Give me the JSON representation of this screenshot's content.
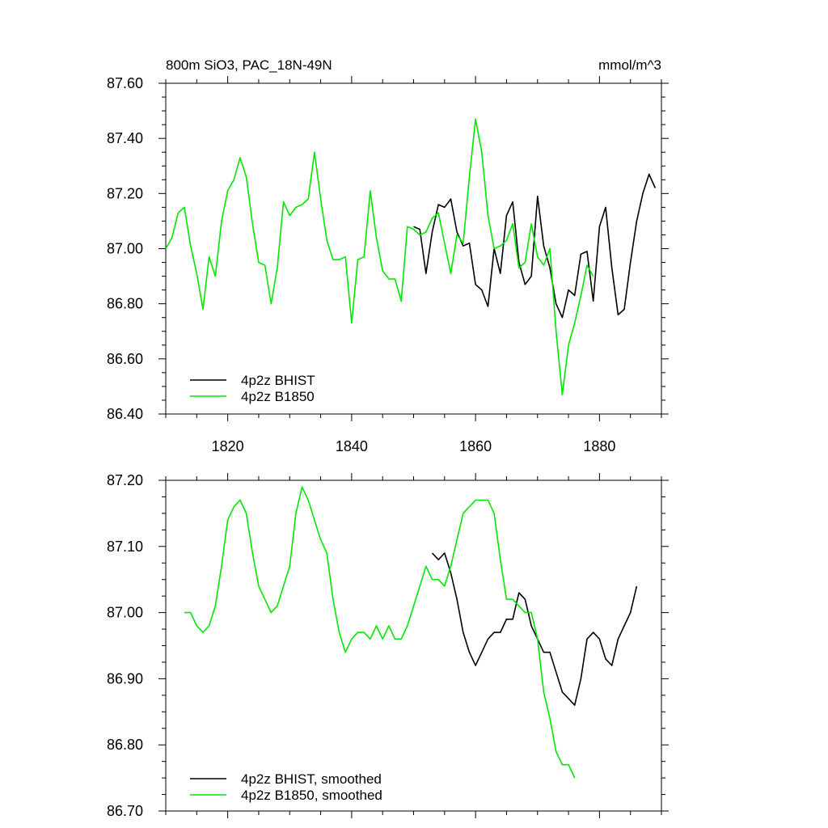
{
  "chart_data": [
    {
      "type": "line",
      "title": "800m SiO3, PAC_18N-49N",
      "units": "mmol/m^3",
      "xlabel": "",
      "ylabel": "",
      "xlim": [
        1810,
        1890
      ],
      "ylim": [
        86.4,
        87.6
      ],
      "x_ticks": [
        1820,
        1840,
        1860,
        1880
      ],
      "x_tick_labels": [
        "1820",
        "1840",
        "1860",
        "1880"
      ],
      "y_ticks": [
        86.4,
        86.6,
        86.8,
        87.0,
        87.2,
        87.4,
        87.6
      ],
      "y_tick_labels": [
        "86.40",
        "86.60",
        "86.80",
        "87.00",
        "87.20",
        "87.40",
        "87.60"
      ],
      "grid": false,
      "legend_position": "bottom-left",
      "series": [
        {
          "name": "4p2z BHIST",
          "color": "#000000",
          "x": [
            1850,
            1851,
            1852,
            1853,
            1854,
            1855,
            1856,
            1857,
            1858,
            1859,
            1860,
            1861,
            1862,
            1863,
            1864,
            1865,
            1866,
            1867,
            1868,
            1869,
            1870,
            1871,
            1872,
            1873,
            1874,
            1875,
            1876,
            1877,
            1878,
            1879,
            1880,
            1881,
            1882,
            1883,
            1884,
            1885,
            1886,
            1887,
            1888,
            1889
          ],
          "values": [
            87.08,
            87.07,
            86.91,
            87.06,
            87.16,
            87.15,
            87.18,
            87.06,
            87.01,
            87.02,
            86.87,
            86.85,
            86.79,
            87.0,
            86.91,
            87.12,
            87.17,
            86.95,
            86.87,
            86.9,
            87.19,
            87.01,
            86.93,
            86.8,
            86.75,
            86.85,
            86.83,
            86.98,
            86.99,
            86.81,
            87.08,
            87.15,
            86.93,
            86.76,
            86.78,
            86.95,
            87.1,
            87.2,
            87.27,
            87.22
          ]
        },
        {
          "name": "4p2z B1850",
          "color": "#00e600",
          "x": [
            1810,
            1811,
            1812,
            1813,
            1814,
            1815,
            1816,
            1817,
            1818,
            1819,
            1820,
            1821,
            1822,
            1823,
            1824,
            1825,
            1826,
            1827,
            1828,
            1829,
            1830,
            1831,
            1832,
            1833,
            1834,
            1835,
            1836,
            1837,
            1838,
            1839,
            1840,
            1841,
            1842,
            1843,
            1844,
            1845,
            1846,
            1847,
            1848,
            1849,
            1850,
            1851,
            1852,
            1853,
            1854,
            1855,
            1856,
            1857,
            1858,
            1859,
            1860,
            1861,
            1862,
            1863,
            1864,
            1865,
            1866,
            1867,
            1868,
            1869,
            1870,
            1871,
            1872,
            1873,
            1874,
            1875,
            1876,
            1877,
            1878,
            1879
          ],
          "values": [
            87.0,
            87.04,
            87.13,
            87.15,
            87.01,
            86.91,
            86.78,
            86.97,
            86.9,
            87.1,
            87.21,
            87.25,
            87.33,
            87.26,
            87.09,
            86.95,
            86.94,
            86.8,
            86.93,
            87.17,
            87.12,
            87.15,
            87.16,
            87.18,
            87.35,
            87.18,
            87.03,
            86.96,
            86.96,
            86.97,
            86.73,
            86.96,
            86.97,
            87.21,
            87.04,
            86.92,
            86.89,
            86.89,
            86.81,
            87.08,
            87.07,
            87.05,
            87.06,
            87.11,
            87.13,
            87.02,
            86.91,
            87.05,
            87.02,
            87.26,
            87.47,
            87.35,
            87.12,
            87.0,
            87.01,
            87.03,
            87.09,
            86.93,
            86.95,
            87.09,
            86.97,
            86.94,
            87.0,
            86.7,
            86.47,
            86.65,
            86.73,
            86.83,
            86.94,
            86.9
          ]
        }
      ]
    },
    {
      "type": "line",
      "title": "",
      "units": "",
      "xlabel": "",
      "ylabel": "",
      "xlim": [
        1810,
        1890
      ],
      "ylim": [
        86.7,
        87.2
      ],
      "x_ticks": [
        1820,
        1840,
        1860,
        1880
      ],
      "x_tick_labels": [],
      "y_ticks": [
        86.7,
        86.8,
        86.9,
        87.0,
        87.1,
        87.2
      ],
      "y_tick_labels": [
        "86.70",
        "86.80",
        "86.90",
        "87.00",
        "87.10",
        "87.20"
      ],
      "grid": false,
      "legend_position": "bottom-left",
      "series": [
        {
          "name": "4p2z BHIST, smoothed",
          "color": "#000000",
          "x": [
            1853,
            1854,
            1855,
            1856,
            1857,
            1858,
            1859,
            1860,
            1861,
            1862,
            1863,
            1864,
            1865,
            1866,
            1867,
            1868,
            1869,
            1870,
            1871,
            1872,
            1873,
            1874,
            1875,
            1876,
            1877,
            1878,
            1879,
            1880,
            1881,
            1882,
            1883,
            1884,
            1885,
            1886
          ],
          "values": [
            87.09,
            87.08,
            87.09,
            87.06,
            87.02,
            86.97,
            86.94,
            86.92,
            86.94,
            86.96,
            86.97,
            86.97,
            86.99,
            86.99,
            87.03,
            87.02,
            86.98,
            86.96,
            86.94,
            86.94,
            86.91,
            86.88,
            86.87,
            86.86,
            86.9,
            86.96,
            86.97,
            86.96,
            86.93,
            86.92,
            86.96,
            86.98,
            87.0,
            87.04
          ]
        },
        {
          "name": "4p2z B1850, smoothed",
          "color": "#00e600",
          "x": [
            1813,
            1814,
            1815,
            1816,
            1817,
            1818,
            1819,
            1820,
            1821,
            1822,
            1823,
            1824,
            1825,
            1826,
            1827,
            1828,
            1829,
            1830,
            1831,
            1832,
            1833,
            1834,
            1835,
            1836,
            1837,
            1838,
            1839,
            1840,
            1841,
            1842,
            1843,
            1844,
            1845,
            1846,
            1847,
            1848,
            1849,
            1850,
            1851,
            1852,
            1853,
            1854,
            1855,
            1856,
            1857,
            1858,
            1859,
            1860,
            1861,
            1862,
            1863,
            1864,
            1865,
            1866,
            1867,
            1868,
            1869,
            1870,
            1871,
            1872,
            1873,
            1874,
            1875,
            1876
          ],
          "values": [
            87.0,
            87.0,
            86.98,
            86.97,
            86.98,
            87.01,
            87.07,
            87.14,
            87.16,
            87.17,
            87.15,
            87.09,
            87.04,
            87.02,
            87.0,
            87.01,
            87.04,
            87.07,
            87.15,
            87.19,
            87.17,
            87.14,
            87.11,
            87.09,
            87.02,
            86.97,
            86.94,
            86.96,
            86.97,
            86.97,
            86.96,
            86.98,
            86.96,
            86.98,
            86.96,
            86.96,
            86.98,
            87.01,
            87.04,
            87.07,
            87.05,
            87.05,
            87.04,
            87.07,
            87.11,
            87.15,
            87.16,
            87.17,
            87.17,
            87.17,
            87.15,
            87.08,
            87.02,
            87.02,
            87.01,
            87.0,
            87.0,
            86.96,
            86.88,
            86.84,
            86.79,
            86.77,
            86.77,
            86.75
          ]
        }
      ]
    }
  ]
}
